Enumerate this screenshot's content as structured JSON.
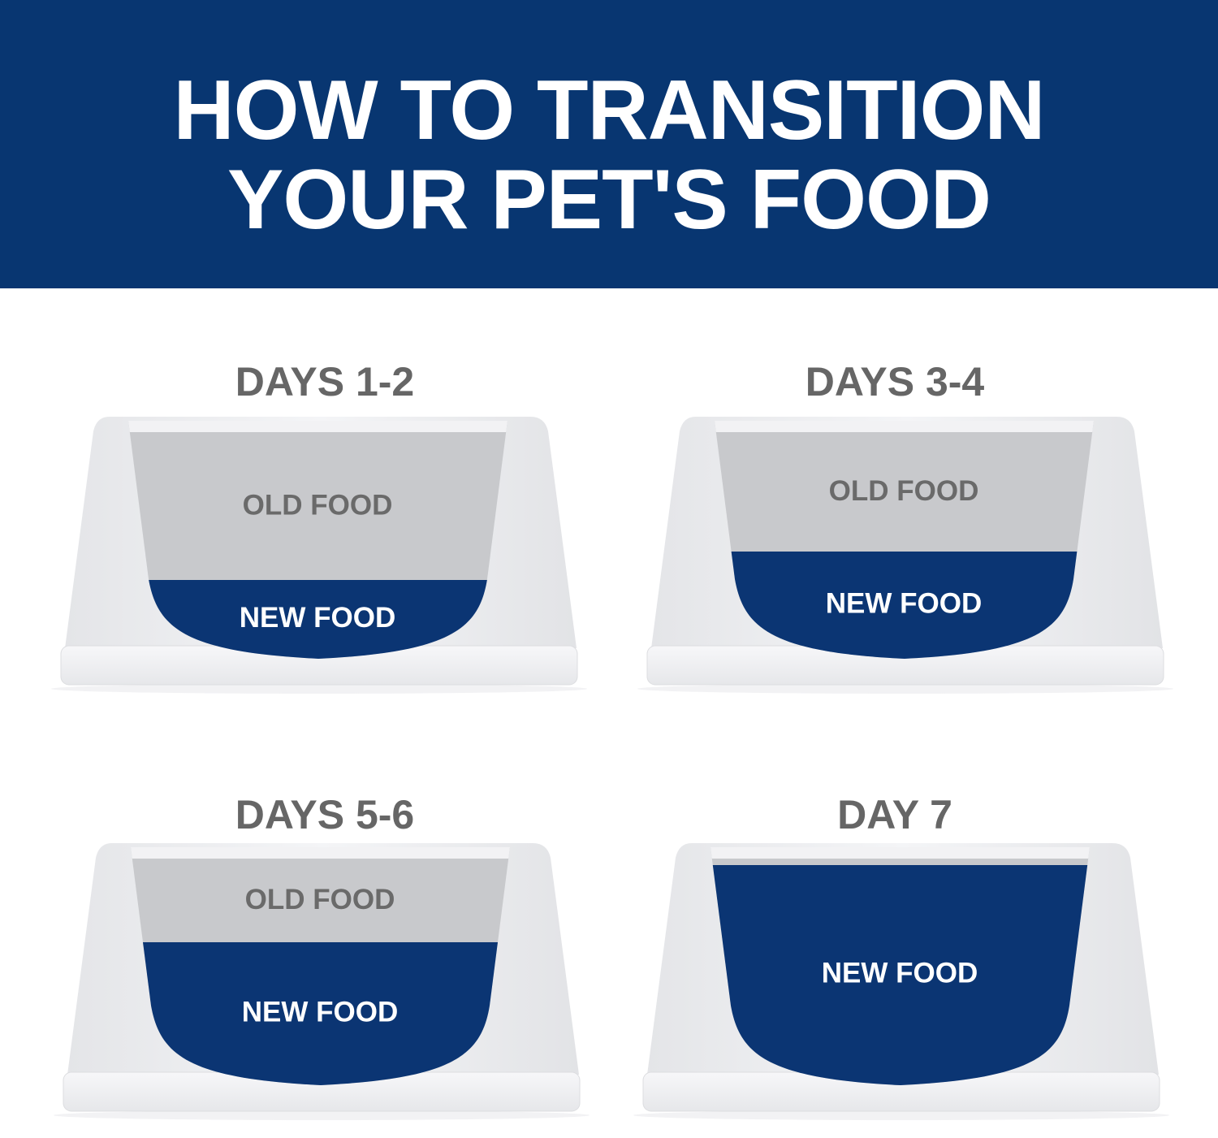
{
  "header": {
    "title_line1": "HOW TO TRANSITION",
    "title_line2": "YOUR PET'S FOOD"
  },
  "colors": {
    "brand_blue": "#083671",
    "new_food": "#0b3573",
    "old_food": "#c8c9cc",
    "bowl": "#eeeff2",
    "heading_gray": "#666666"
  },
  "steps": [
    {
      "days": "DAYS 1-2",
      "old_label": "OLD FOOD",
      "new_label": "NEW FOOD",
      "new_food_fraction": 0.25
    },
    {
      "days": "DAYS 3-4",
      "old_label": "OLD FOOD",
      "new_label": "NEW FOOD",
      "new_food_fraction": 0.5
    },
    {
      "days": "DAYS 5-6",
      "old_label": "OLD FOOD",
      "new_label": "NEW FOOD",
      "new_food_fraction": 0.75
    },
    {
      "days": "DAY 7",
      "old_label": "",
      "new_label": "NEW FOOD",
      "new_food_fraction": 1.0
    }
  ]
}
